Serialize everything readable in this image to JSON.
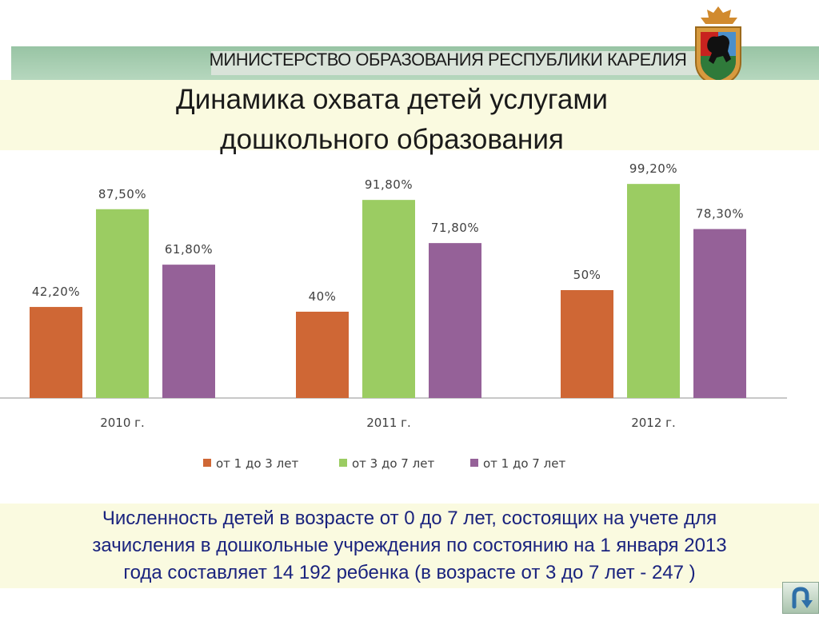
{
  "header": {
    "ministry": "МИНИСТЕРСТВО ОБРАЗОВАНИЯ РЕСПУБЛИКИ КАРЕЛИЯ"
  },
  "title": {
    "line1": "Динамика охвата детей услугами",
    "line2": "дошкольного образования"
  },
  "colors": {
    "accent": "#1a237e",
    "banner": "#a8cdb1",
    "title_band": "#fafae0"
  },
  "chart_data": {
    "type": "bar",
    "categories": [
      "2010 г.",
      "2011 г.",
      "2012 г."
    ],
    "series": [
      {
        "name": "от 1 до 3 лет",
        "color": "#cf6735",
        "values": [
          42.2,
          40,
          50
        ],
        "labels": [
          "42,20%",
          "40%",
          "50%"
        ]
      },
      {
        "name": "от 3 до 7 лет",
        "color": "#9bcc62",
        "values": [
          87.5,
          91.8,
          99.2
        ],
        "labels": [
          "87,50%",
          "91,80%",
          "99,20%"
        ]
      },
      {
        "name": "от 1 до 7 лет",
        "color": "#956198",
        "values": [
          61.8,
          71.8,
          78.3
        ],
        "labels": [
          "61,80%",
          "71,80%",
          "78,30%"
        ]
      }
    ],
    "ylim": [
      0,
      100
    ],
    "grid": false,
    "legend": "bottom"
  },
  "note": {
    "line1": "Численность детей в возрасте от 0 до 7 лет, состоящих на учете для",
    "line2": "зачисления в дошкольные учреждения по состоянию на 1 января 2013",
    "line3": "года составляет 14 192 ребенка (в возрасте от 3 до 7 лет - 247 )"
  },
  "nav": {
    "return_icon": "return-arrow-icon"
  }
}
